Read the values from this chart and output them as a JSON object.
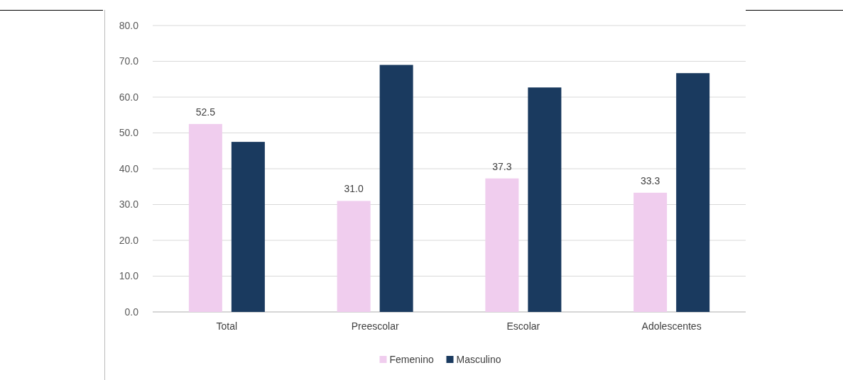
{
  "chart_data": {
    "type": "bar",
    "categories": [
      "Total",
      "Preescolar",
      "Escolar",
      "Adolescentes"
    ],
    "series": [
      {
        "name": "Femenino",
        "color": "#f0cdee",
        "values": [
          52.5,
          31.0,
          37.3,
          33.3
        ],
        "value_labels": [
          "52.5",
          "31.0",
          "37.3",
          "33.3"
        ]
      },
      {
        "name": "Masculino",
        "color": "#1a3a5f",
        "values": [
          47.5,
          69.0,
          62.7,
          66.7
        ]
      }
    ],
    "ylim": [
      0,
      80
    ],
    "yticks": [
      {
        "value": 0,
        "label": "0.0"
      },
      {
        "value": 10,
        "label": "10.0"
      },
      {
        "value": 20,
        "label": "20.0"
      },
      {
        "value": 30,
        "label": "30.0"
      },
      {
        "value": 40,
        "label": "40.0"
      },
      {
        "value": 50,
        "label": "50.0"
      },
      {
        "value": 60,
        "label": "60.0"
      },
      {
        "value": 70,
        "label": "70.0"
      },
      {
        "value": 80,
        "label": "80.0"
      }
    ],
    "grid": "y",
    "legend": "bottom"
  }
}
